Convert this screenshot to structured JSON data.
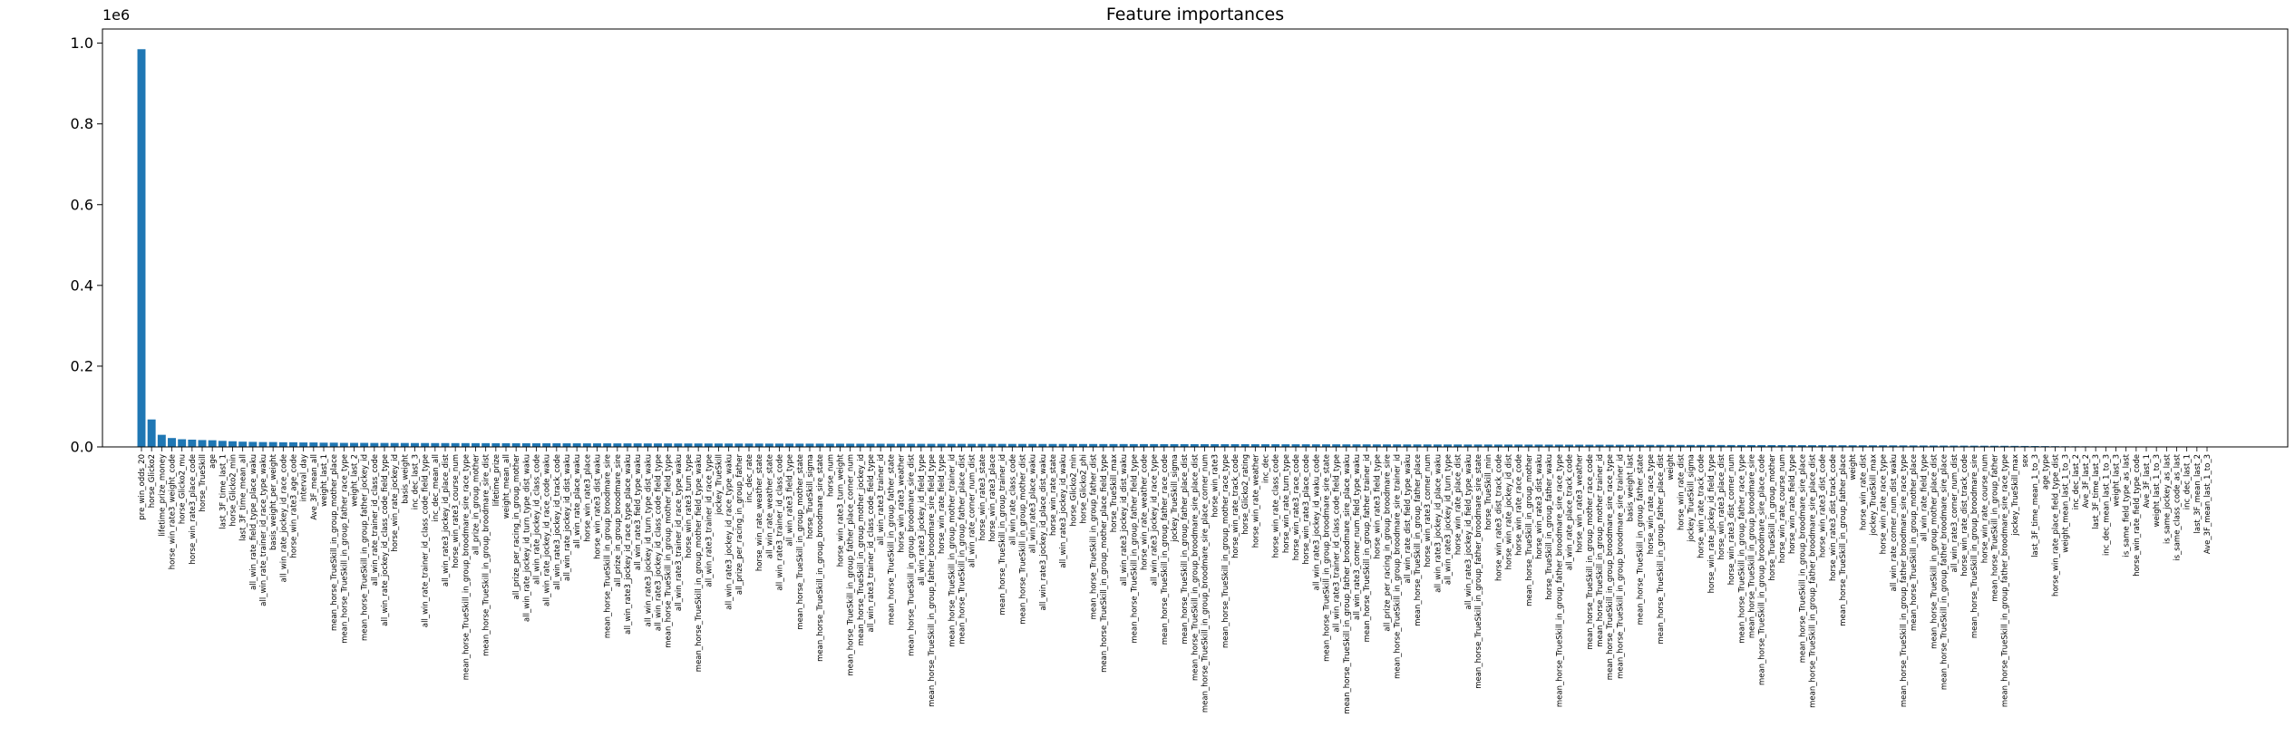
{
  "chart_data": {
    "type": "bar",
    "title": "Feature importances",
    "y_offset_label": "1e6",
    "color": "#1f77b4",
    "ylim": [
      0,
      1035000
    ],
    "yticks": [
      {
        "value": 0,
        "label": "0.0"
      },
      {
        "value": 200000,
        "label": "0.2"
      },
      {
        "value": 400000,
        "label": "0.4"
      },
      {
        "value": 600000,
        "label": "0.6"
      },
      {
        "value": 800000,
        "label": "0.8"
      },
      {
        "value": 1000000,
        "label": "1.0"
      }
    ],
    "categories": [
      "pre_win_odds_20",
      "horse_Glicko2",
      "lifetime_prize_money",
      "horse_win_rate3_weight_code",
      "horse_Glicko2_mu",
      "horse_win_rate3_place_code",
      "horse_TrueSkill",
      "age",
      "last_3F_time_last_1",
      "horse_Glicko2_min",
      "last_3F_time_mean_all",
      "all_win_rate_field_type_place_waku",
      "all_win_rate_trainer_id_race_type_waku",
      "basis_weight_per_weight",
      "all_win_rate_jockey_id_race_code",
      "horse_win_rate3_age_code",
      "interval_day",
      "Ave_3F_mean_all",
      "weight_last_1",
      "mean_horse_TrueSkill_in_group_mother_place",
      "mean_horse_TrueSkill_in_group_father_race_type",
      "weight_last_2",
      "mean_horse_TrueSkill_in_group_father_jockey_id",
      "all_win_rate_trainer_id_class_code",
      "all_win_rate_jockey_id_class_code_field_type",
      "horse_win_rate_jockey_id",
      "basis_weight",
      "inc_dec_last_3",
      "all_win_rate_trainer_id_class_code_field_type",
      "inc_dec_mean_all",
      "all_win_rate3_jockey_id_place_dist",
      "horse_win_rate3_course_num",
      "mean_horse_TrueSkill_in_group_broodmare_sire_race_type",
      "all_prize_in_group_mother",
      "mean_horse_TrueSkill_in_group_broodmare_sire_dist",
      "lifetime_prize",
      "weight_mean_all",
      "all_prize_per_racing_in_group_mother",
      "all_win_rate_jockey_id_turn_type_dist_waku",
      "all_win_rate_jockey_id_class_code",
      "all_win_rate_jockey_id_race_code_waku",
      "all_win_rate3_jockey_id_track_code",
      "all_win_rate_jockey_id_dist_waku",
      "all_win_rate_place_waku",
      "horse_win_rate3_place",
      "horse_win_rate3_dist_waku",
      "mean_horse_TrueSkill_in_group_broodmare_sire",
      "all_prize_in_group_broodmare_sire",
      "all_win_rate3_jockey_id_race_type_place_waku",
      "all_win_rate3_field_type_waku",
      "all_win_rate3_jockey_id_turn_type_dist_waku",
      "all_win_rate3_jockey_id_class_code_field_type",
      "mean_horse_TrueSkill_in_group_mother_field_type",
      "all_win_rate3_trainer_id_race_type_waku",
      "horse_win_rate3_turn_type",
      "mean_horse_TrueSkill_in_group_mother_field_type_waku",
      "all_win_rate3_trainer_id_race_type",
      "jockey_TrueSkill",
      "all_win_rate3_jockey_id_race_type_waku",
      "all_prize_per_racing_in_group_father",
      "inc_dec_rate",
      "horse_win_rate_weather_state",
      "all_win_rate_weather_state",
      "all_win_rate3_trainer_id_class_code",
      "all_win_rate3_field_type",
      "mean_horse_TrueSkill_in_group_mother_state",
      "horse_TrueSkill_sigma",
      "mean_horse_TrueSkill_in_group_broodmare_sire_state",
      "horse_num",
      "horse_win_rate3_turn_weight",
      "mean_horse_TrueSkill_in_group_father_place_corner_num",
      "mean_horse_TrueSkill_in_group_mother_jockey_id",
      "all_win_rate3_trainer_id_class_code_field_type",
      "all_win_rate3_trainer_id",
      "mean_horse_TrueSkill_in_group_father_state",
      "horse_win_rate3_weather",
      "mean_horse_TrueSkill_in_group_broodmare_sire_dist",
      "all_win_rate3_jockey_id_field_type",
      "mean_horse_TrueSkill_in_group_father_broodmare_sire_field_type",
      "horse_win_rate_field_type",
      "mean_horse_TrueSkill_in_group_mother_trainer_id",
      "mean_horse_TrueSkill_in_group_father_place_dist",
      "all_win_rate_corner_num_dist",
      "horse_win_rate3_state",
      "horse_win_rate3_place",
      "mean_horse_TrueSkill_in_group_trainer_id",
      "all_win_rate_class_code",
      "mean_horse_TrueSkill_in_group_mother_dist",
      "all_win_rate3_place_waku",
      "all_win_rate3_jockey_id_place_dist_waku",
      "horse_win_rate_state",
      "all_win_rate3_jockey_id_waku",
      "horse_Glicko2_min",
      "horse_Glicko2_phi",
      "mean_horse_TrueSkill_in_group_father_dist",
      "mean_horse_TrueSkill_in_group_mother_place_field_type",
      "horse_TrueSkill_max",
      "all_win_rate3_jockey_id_dist_waku",
      "mean_horse_TrueSkill_in_group_father_field_type",
      "horse_win_rate_weather_code",
      "all_win_rate3_jockey_id_race_type",
      "mean_horse_TrueSkill_in_group_father_race_code",
      "jockey_TrueSkill_sigma",
      "mean_horse_TrueSkill_in_group_father_place_dist",
      "mean_horse_TrueSkill_in_group_broodmare_sire_place_dist",
      "mean_horse_TrueSkill_in_group_broodmare_sire_place_corner_num",
      "horse_win_rate3",
      "mean_horse_TrueSkill_in_group_mother_race_type",
      "horse_win_rate_track_code",
      "horse_Glicko2_rating",
      "horse_win_rate_weather",
      "inc_dec",
      "horse_win_rate_class_code",
      "horse_win_rate_turn_type",
      "horse_win_rate3_race_code",
      "horse_win_rate3_place_code",
      "all_win_rate3_jockey_id_waku_code",
      "mean_horse_TrueSkill_in_group_broodmare_sire_state",
      "all_win_rate3_trainer_id_class_code_field_type",
      "mean_horse_TrueSkill_in_group_father_broodmare_sire_place_waku",
      "all_win_rate3_corner_num_field_type_waku",
      "mean_horse_TrueSkill_in_group_father_trainer_id",
      "horse_win_rate3_field_type",
      "all_prize_per_racing_in_group_broodmare_sire",
      "mean_horse_TrueSkill_in_group_broodmare_sire_trainer_id",
      "all_win_rate_dist_field_type_waku",
      "mean_horse_TrueSkill_in_group_father_place",
      "horse_win_rate3_corner_num",
      "all_win_rate3_jockey_id_place_waku",
      "all_win_rate3_jockey_id_turn_type",
      "horse_win_rate_place_dist",
      "all_win_rate3_jockey_id_field_type_waku",
      "mean_horse_TrueSkill_in_group_father_broodmare_sire_state",
      "horse_TrueSkill_min",
      "horse_win_rate3_dist_track_code",
      "horse_win_rate_jockey_id_dist",
      "horse_win_rate_race_code",
      "mean_horse_TrueSkill_in_group_mother",
      "horse_win_rate3_dist_waku",
      "horse_TrueSkill_in_group_father_waku",
      "mean_horse_TrueSkill_in_group_father_broodmare_sire_race_type",
      "all_win_rate_place_track_code",
      "horse_win_rate3_weather",
      "mean_horse_TrueSkill_in_group_mother_race_code",
      "mean_horse_TrueSkill_in_group_mother_trainer_id",
      "mean_horse_TrueSkill_in_group_broodmare_sire_race_type",
      "mean_horse_TrueSkill_in_group_broodmare_sire_trainer_id",
      "basis_weight_last",
      "mean_horse_TrueSkill_in_group_father_state",
      "horse_win_rate_race_type",
      "mean_horse_TrueSkill_in_group_father_place_dist",
      "weight",
      "horse_win_rate_dist",
      "jockey_TrueSkill_sigma",
      "horse_win_rate_track_code",
      "horse_win_rate_jockey_id_field_type",
      "horse_win_rate3_place_dist",
      "horse_win_rate3_dist_corner_num",
      "mean_horse_TrueSkill_in_group_father_race_type",
      "mean_horse_TrueSkill_in_group_broodmare_sire",
      "mean_horse_TrueSkill_in_group_broodmare_sire_place_code",
      "horse_TrueSkill_in_group_mother",
      "horse_win_rate_course_num",
      "horse_win_rate_field_type",
      "mean_horse_TrueSkill_in_group_broodmare_sire_place",
      "mean_horse_TrueSkill_in_group_father_broodmare_sire_place_dist",
      "horse_win_rate3_dist_code",
      "horse_win_rate3_dist_track_code",
      "mean_horse_TrueSkill_in_group_father_place",
      "weight",
      "horse_win_rate_dist",
      "jockey_TrueSkill_max",
      "horse_win_rate_race_type",
      "all_win_rate_corner_num_dist_waku",
      "mean_horse_TrueSkill_in_group_father_broodmare_sire_race_type",
      "mean_horse_TrueSkill_in_group_mother_place",
      "all_win_rate_field_type",
      "mean_horse_TrueSkill_in_group_mother_place_dist",
      "mean_horse_TrueSkill_in_group_father_broodmare_sire_place",
      "all_win_rate3_corner_num_dist",
      "horse_win_rate_dist_track_code",
      "mean_horse_TrueSkill_in_group_broodmare_sire",
      "horse_win_rate_course_num",
      "mean_horse_TrueSkill_in_group_father",
      "mean_horse_TrueSkill_in_group_father_broodmare_sire_race_type",
      "jockey_TrueSkill_max",
      "sex",
      "last_3F_time_mean_1_to_3",
      "age_type",
      "horse_win_rate_place_field_type_dist",
      "weight_mean_last_1_to_3",
      "inc_dec_last_2",
      "Ave_3F_last_2",
      "last_3F_time_last_3",
      "inc_dec_mean_last_1_to_3",
      "weight_last_3",
      "is_same_field_type_as_last",
      "horse_win_rate_field_type_code",
      "Ave_3F_last_1",
      "weight_last_1_to_3",
      "is_same_jockey_as_last",
      "is_same_class_code_as_last",
      "inc_dec_last_1",
      "last_3F_mean_last_2",
      "Ave_3F_mean_last_1_to_3"
    ],
    "values": [
      985000,
      68000,
      30000,
      22000,
      19000,
      18000,
      17000,
      16500,
      15000,
      14000,
      13000,
      12500,
      12000,
      12000,
      11500,
      11500,
      11000,
      11000,
      10500,
      10500,
      10000,
      10000,
      10000,
      9800,
      9800,
      9700,
      9700,
      9600,
      9600,
      9500,
      9500,
      9400,
      9400,
      9300,
      9300,
      9200,
      9200,
      9100,
      9100,
      9000,
      9000,
      9000,
      8900,
      8900,
      8800,
      8800,
      8800,
      8700,
      8700,
      8700,
      8600,
      8600,
      8600,
      8500,
      8500,
      8500,
      8400,
      8400,
      8400,
      8300,
      8300,
      8300,
      8200,
      8200,
      8200,
      8100,
      8100,
      8100,
      8000,
      8000,
      8000,
      7900,
      7900,
      7900,
      7800,
      7800,
      7800,
      7700,
      7700,
      7700,
      7600,
      7600,
      7600,
      7500,
      7500,
      7500,
      7400,
      7400,
      7400,
      7300,
      7300,
      7300,
      7200,
      7200,
      7200,
      7100,
      7100,
      7100,
      7000,
      7000,
      7000,
      6900,
      6900,
      6900,
      6800,
      6800,
      6800,
      6700,
      6700,
      6700,
      6600,
      6600,
      6600,
      6500,
      6500,
      6500,
      6400,
      6400,
      6400,
      6300,
      6300,
      6300,
      6200,
      6200,
      6200,
      6100,
      6100,
      6100,
      6000,
      6000,
      6000,
      5900,
      5900,
      5900,
      5800,
      5800,
      5800,
      5700,
      5700,
      5600,
      5600,
      5500,
      5500,
      5400,
      5400,
      5300,
      5300,
      5200,
      5200,
      5100,
      5100,
      5000,
      5000,
      4900,
      4900,
      4800,
      4800,
      4700,
      4700,
      4600,
      4600,
      4500,
      4500,
      4400,
      4400,
      4300,
      4300,
      4200,
      4200,
      4100,
      4100,
      4000,
      4000,
      3900,
      3800,
      3700,
      3600,
      3500,
      3400,
      3300,
      3200,
      3100,
      3000,
      2900,
      2800,
      2600,
      2400,
      2200,
      2000,
      1800,
      1600,
      1500,
      1400,
      1300,
      1200,
      1100,
      1000,
      900,
      800,
      700,
      600,
      500,
      400,
      300,
      100
    ]
  }
}
